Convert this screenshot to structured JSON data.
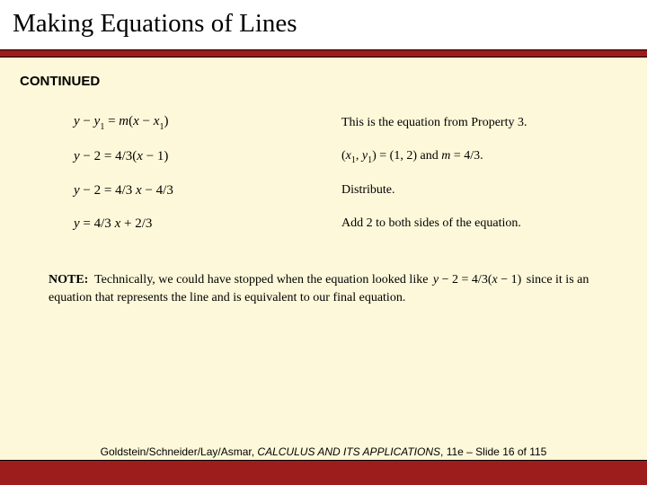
{
  "header": {
    "title": "Making Equations of Lines"
  },
  "continued_label": "CONTINUED",
  "steps": [
    {
      "eq": "y − y₁ = m(x − x₁)",
      "desc_html": "This is the equation from Property 3."
    },
    {
      "eq": "y − 2 = 4/3(x − 1)",
      "desc_html": "(<span class='it'>x</span><sub>1</sub>, <span class='it'>y</span><sub>1</sub>) = (1, 2) and <span class='it'>m</span> = 4/3."
    },
    {
      "eq": "y − 2 = 4/3 x − 4/3",
      "desc_html": "Distribute."
    },
    {
      "eq": "y = 4/3 x + 2/3",
      "desc_html": "Add 2 to both sides of the equation."
    }
  ],
  "note": {
    "bold": "NOTE:",
    "pre": "Technically, we could have stopped when the equation looked like",
    "inline_eq": "y − 2 = 4/3(x − 1)",
    "post": "since it is an equation that represents the line and is equivalent to our final equation."
  },
  "footer": {
    "authors": "Goldstein/Schneider/Lay/Asmar,",
    "book": "CALCULUS AND ITS APPLICATIONS",
    "tail": ", 11e – Slide 16 of 115"
  },
  "colors": {
    "page_bg": "#fdf8d9",
    "header_bg": "#ffffff",
    "bar": "#9d1c1c",
    "text": "#000000"
  }
}
